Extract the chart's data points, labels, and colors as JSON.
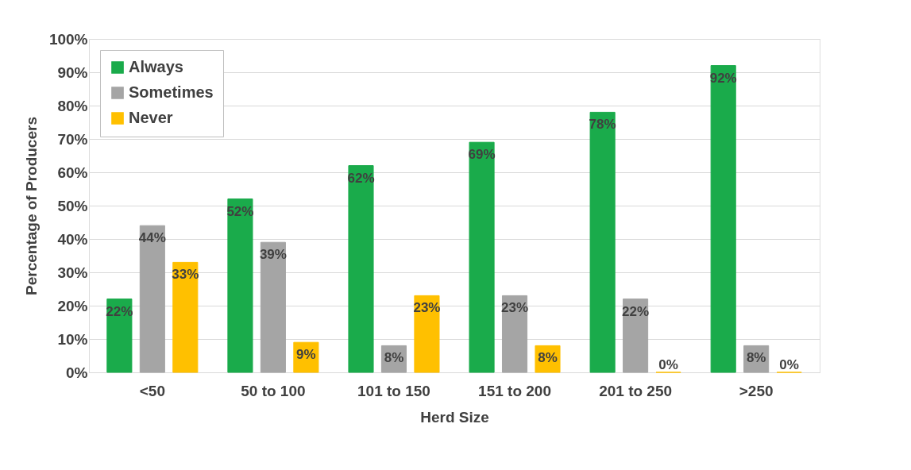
{
  "chart_data": {
    "type": "bar",
    "xlabel": "Herd Size",
    "ylabel": "Percentage of Producers",
    "categories": [
      "<50",
      "50 to 100",
      "101 to 150",
      "151 to 200",
      "201 to 250",
      ">250"
    ],
    "series": [
      {
        "name": "Always",
        "color": "#1aab4b",
        "values": [
          22,
          52,
          62,
          69,
          78,
          92
        ],
        "value_labels": [
          "22%",
          "52%",
          "62%",
          "69%",
          "78%",
          "92%"
        ]
      },
      {
        "name": "Sometimes",
        "color": "#a5a5a5",
        "values": [
          44,
          39,
          8,
          23,
          22,
          8
        ],
        "value_labels": [
          "44%",
          "39%",
          "8%",
          "23%",
          "22%",
          "8%"
        ]
      },
      {
        "name": "Never",
        "color": "#ffc000",
        "values": [
          33,
          9,
          23,
          8,
          0,
          0
        ],
        "value_labels": [
          "33%",
          "9%",
          "23%",
          "8%",
          "0%",
          "0%"
        ]
      }
    ],
    "ylim": [
      0,
      100
    ],
    "yticks": [
      {
        "value": 0,
        "label": "0%"
      },
      {
        "value": 10,
        "label": "10%"
      },
      {
        "value": 20,
        "label": "20%"
      },
      {
        "value": 30,
        "label": "30%"
      },
      {
        "value": 40,
        "label": "40%"
      },
      {
        "value": 50,
        "label": "50%"
      },
      {
        "value": 60,
        "label": "60%"
      },
      {
        "value": 70,
        "label": "70%"
      },
      {
        "value": 80,
        "label": "80%"
      },
      {
        "value": 90,
        "label": "90%"
      },
      {
        "value": 100,
        "label": "100%"
      }
    ],
    "grid": "y",
    "legend": "top left"
  }
}
